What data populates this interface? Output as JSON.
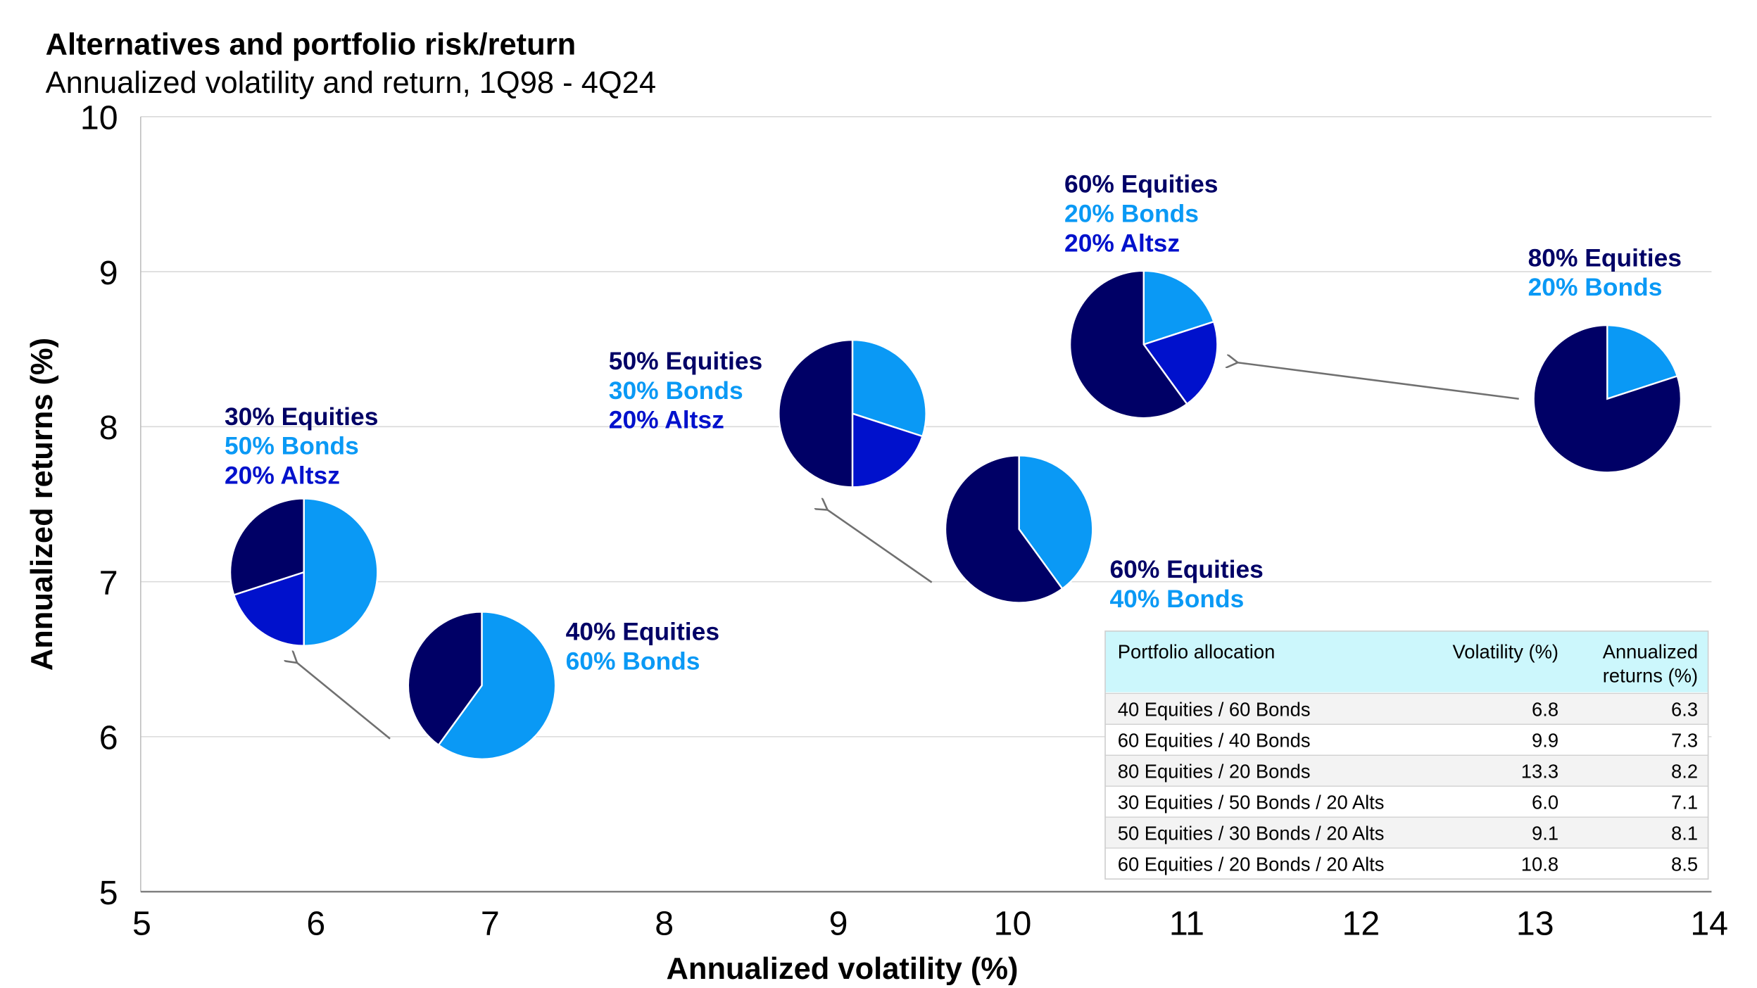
{
  "chart_data": {
    "type": "scatter",
    "title": "Alternatives and portfolio risk/return",
    "subtitle": "Annualized volatility and return, 1Q98 - 4Q24",
    "xlabel": "Annualized volatility (%)",
    "ylabel": "Annualized returns (%)",
    "xlim": [
      5,
      14
    ],
    "ylim": [
      5,
      10
    ],
    "xticks": [
      "5",
      "6",
      "7",
      "8",
      "9",
      "10",
      "11",
      "12",
      "13",
      "14"
    ],
    "yticks": [
      "5",
      "6",
      "7",
      "8",
      "9",
      "10"
    ],
    "grid": "horizontal",
    "colors": {
      "equities": "#000066",
      "bonds": "#0a99f5",
      "alts": "#0011cc"
    },
    "points": [
      {
        "volatility": 6.8,
        "return": 6.3,
        "equities": 40,
        "bonds": 60,
        "alts": 0,
        "labels": [
          "40% Equities",
          "60% Bonds"
        ]
      },
      {
        "volatility": 9.9,
        "return": 7.3,
        "equities": 60,
        "bonds": 40,
        "alts": 0,
        "labels": [
          "60% Equities",
          "40% Bonds"
        ]
      },
      {
        "volatility": 13.3,
        "return": 8.2,
        "equities": 80,
        "bonds": 20,
        "alts": 0,
        "labels": [
          "80% Equities",
          "20% Bonds"
        ]
      },
      {
        "volatility": 6.0,
        "return": 7.1,
        "equities": 30,
        "bonds": 50,
        "alts": 20,
        "labels": [
          "30% Equities",
          "50% Bonds",
          "20% Altsz"
        ]
      },
      {
        "volatility": 9.1,
        "return": 8.1,
        "equities": 50,
        "bonds": 30,
        "alts": 20,
        "labels": [
          "50% Equities",
          "30% Bonds",
          "20% Altsz"
        ]
      },
      {
        "volatility": 10.8,
        "return": 8.5,
        "equities": 60,
        "bonds": 20,
        "alts": 20,
        "labels": [
          "60% Equities",
          "20% Bonds",
          "20% Altsz"
        ]
      }
    ],
    "table": {
      "header_color": "#ccf7fc",
      "headers": [
        "Portfolio allocation",
        "Volatility (%)",
        "Annualized",
        "returns (%)"
      ],
      "rows": [
        [
          "40 Equities / 60 Bonds",
          "6.8",
          "6.3"
        ],
        [
          "60 Equities / 40 Bonds",
          "9.9",
          "7.3"
        ],
        [
          "80 Equities / 20 Bonds",
          "13.3",
          "8.2"
        ],
        [
          "30 Equities / 50 Bonds / 20 Alts",
          "6.0",
          "7.1"
        ],
        [
          "50 Equities / 30 Bonds / 20 Alts",
          "9.1",
          "8.1"
        ],
        [
          "60 Equities / 20 Bonds / 20 Alts",
          "10.8",
          "8.5"
        ]
      ]
    }
  }
}
